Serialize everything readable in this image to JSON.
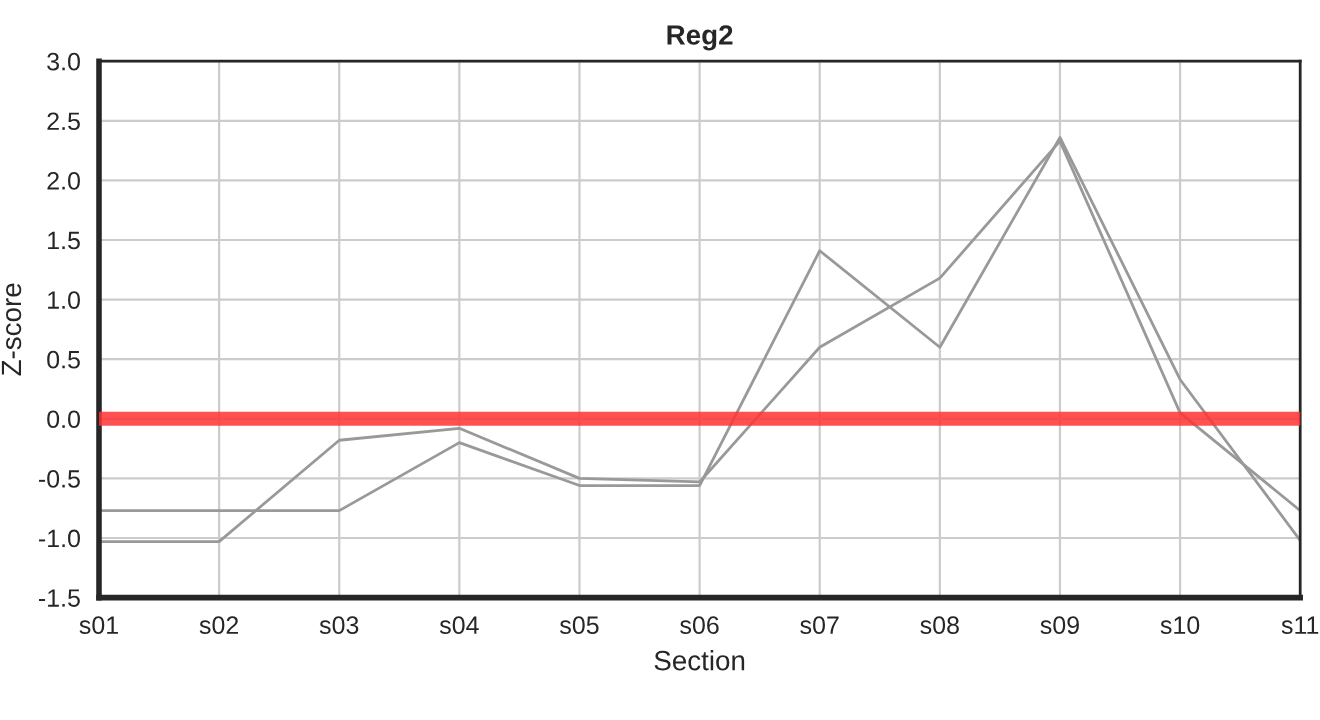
{
  "chart_data": {
    "type": "line",
    "title": "Reg2",
    "xlabel": "Section",
    "ylabel": "Z-score",
    "categories": [
      "s01",
      "s02",
      "s03",
      "s04",
      "s05",
      "s06",
      "s07",
      "s08",
      "s09",
      "s10",
      "s11"
    ],
    "series": [
      {
        "color": "#999999",
        "values": [
          -0.77,
          -0.77,
          -0.77,
          -0.2,
          -0.56,
          -0.56,
          1.41,
          0.6,
          2.36,
          0.33,
          -1.02
        ]
      },
      {
        "color": "#999999",
        "values": [
          -1.03,
          -1.03,
          -0.18,
          -0.08,
          -0.5,
          -0.53,
          0.6,
          1.18,
          2.33,
          0.05,
          -0.77
        ]
      }
    ],
    "ylim": [
      -1.5,
      3.0
    ],
    "yticks": [
      {
        "value": -1.5,
        "label": "-1.5"
      },
      {
        "value": -1.0,
        "label": "-1.0"
      },
      {
        "value": -0.5,
        "label": "-0.5"
      },
      {
        "value": 0,
        "label": "0.0"
      },
      {
        "value": 0.5,
        "label": "0.5"
      },
      {
        "value": 1.0,
        "label": "1.0"
      },
      {
        "value": 1.5,
        "label": "1.5"
      },
      {
        "value": 2.0,
        "label": "2.0"
      },
      {
        "value": 2.5,
        "label": "2.5"
      },
      {
        "value": 3.0,
        "label": "3.0"
      }
    ],
    "ref_lines": [
      {
        "axis": "y",
        "value": 0,
        "color": "#ff3333"
      }
    ],
    "grid": true,
    "legend": false
  }
}
